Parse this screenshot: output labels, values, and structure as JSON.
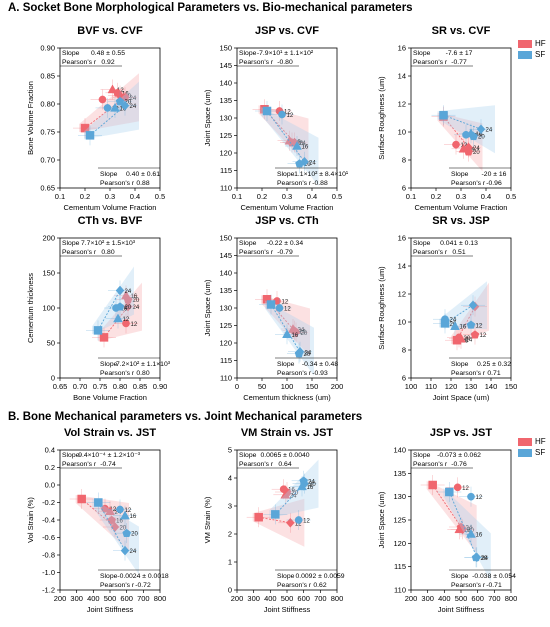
{
  "sections": [
    {
      "letter": "A.",
      "title": "Socket Bone Morphological Parameters vs. Bio-mechanical parameters"
    },
    {
      "letter": "B.",
      "title": "Bone Mechanical parameters vs. Joint Mechanical parameters"
    }
  ],
  "legend": [
    {
      "label": "HF",
      "color": "#f0666e"
    },
    {
      "label": "SF",
      "color": "#5aa6d8"
    }
  ],
  "chart_data": [
    {
      "type": "scatter",
      "title": "BVF vs. CVF",
      "xlabel": "Cementum Volume Fraction",
      "ylabel": "Bone Volume Fraction",
      "xlim": [
        0.1,
        0.5
      ],
      "ylim": [
        0.65,
        0.9
      ],
      "xticks": [
        "0.1",
        "0.2",
        "0.3",
        "0.4",
        "0.5"
      ],
      "yticks": [
        "0.65",
        "0.70",
        "0.75",
        "0.80",
        "0.85",
        "0.90"
      ],
      "series": [
        {
          "name": "HF",
          "points": [
            {
              "x": 0.2,
              "y": 0.757,
              "label": ""
            },
            {
              "x": 0.27,
              "y": 0.808,
              "label": ""
            },
            {
              "x": 0.31,
              "y": 0.826,
              "label": "12"
            },
            {
              "x": 0.33,
              "y": 0.82,
              "label": "16"
            },
            {
              "x": 0.34,
              "y": 0.815,
              "label": "20"
            },
            {
              "x": 0.36,
              "y": 0.812,
              "label": "24"
            }
          ]
        },
        {
          "name": "SF",
          "points": [
            {
              "x": 0.22,
              "y": 0.744,
              "label": ""
            },
            {
              "x": 0.29,
              "y": 0.793,
              "label": "12"
            },
            {
              "x": 0.32,
              "y": 0.793,
              "label": "16"
            },
            {
              "x": 0.34,
              "y": 0.805,
              "label": "20"
            },
            {
              "x": 0.36,
              "y": 0.797,
              "label": "24"
            }
          ]
        }
      ],
      "stats": [
        {
          "slope": "0.48 ± 0.55",
          "r": "0.92"
        },
        {
          "slope": "0.40 ± 0.61",
          "r": "0.88"
        }
      ]
    },
    {
      "type": "scatter",
      "title": "JSP vs. CVF",
      "xlabel": "Cementum Volume Fraction",
      "ylabel": "Joint Space (um)",
      "xlim": [
        0.1,
        0.5
      ],
      "ylim": [
        110,
        150
      ],
      "xticks": [
        "0.1",
        "0.2",
        "0.3",
        "0.4",
        "0.5"
      ],
      "yticks": [
        "110",
        "115",
        "120",
        "125",
        "130",
        "135",
        "140",
        "145",
        "150"
      ],
      "series": [
        {
          "name": "HF",
          "points": [
            {
              "x": 0.21,
              "y": 132.5,
              "label": ""
            },
            {
              "x": 0.27,
              "y": 132.0,
              "label": "12"
            },
            {
              "x": 0.31,
              "y": 123.5,
              "label": "16"
            },
            {
              "x": 0.32,
              "y": 123.0,
              "label": "20"
            },
            {
              "x": 0.33,
              "y": 123.0,
              "label": "24"
            }
          ]
        },
        {
          "name": "SF",
          "points": [
            {
              "x": 0.22,
              "y": 132.0,
              "label": ""
            },
            {
              "x": 0.28,
              "y": 131.0,
              "label": "12"
            },
            {
              "x": 0.34,
              "y": 122.0,
              "label": "16"
            },
            {
              "x": 0.35,
              "y": 117.0,
              "label": "20"
            },
            {
              "x": 0.37,
              "y": 117.5,
              "label": "24"
            }
          ]
        }
      ],
      "stats": [
        {
          "slope": "-7.9×10¹ ± 1.1×10²",
          "r": "-0.80"
        },
        {
          "slope": "-1.1×10² ± 8.4×10¹",
          "r": "-0.88"
        }
      ]
    },
    {
      "type": "scatter",
      "title": "SR vs. CVF",
      "xlabel": "Cementum Volume Fraction",
      "ylabel": "Surface Roughness (um)",
      "xlim": [
        0.1,
        0.5
      ],
      "ylim": [
        6,
        16
      ],
      "xticks": [
        "0.1",
        "0.2",
        "0.3",
        "0.4",
        "0.5"
      ],
      "yticks": [
        "6",
        "8",
        "10",
        "12",
        "14",
        "16"
      ],
      "series": [
        {
          "name": "HF",
          "points": [
            {
              "x": 0.23,
              "y": 11.1,
              "label": ""
            },
            {
              "x": 0.28,
              "y": 9.1,
              "label": "12"
            },
            {
              "x": 0.31,
              "y": 8.8,
              "label": "16"
            },
            {
              "x": 0.33,
              "y": 8.6,
              "label": "20"
            },
            {
              "x": 0.33,
              "y": 8.9,
              "label": "24"
            }
          ]
        },
        {
          "name": "SF",
          "points": [
            {
              "x": 0.23,
              "y": 11.2,
              "label": ""
            },
            {
              "x": 0.32,
              "y": 9.8,
              "label": "12"
            },
            {
              "x": 0.34,
              "y": 9.9,
              "label": "16"
            },
            {
              "x": 0.35,
              "y": 9.7,
              "label": "20"
            },
            {
              "x": 0.38,
              "y": 10.2,
              "label": "24"
            }
          ]
        }
      ],
      "stats": [
        {
          "slope": "-7.6 ± 17",
          "r": "-0.77"
        },
        {
          "slope": "-20 ± 16",
          "r": "-0.96"
        }
      ]
    },
    {
      "type": "scatter",
      "title": "CTh vs. BVF",
      "xlabel": "Bone Volume Fraction",
      "ylabel": "Cementum thickness",
      "xlim": [
        0.65,
        0.9
      ],
      "ylim": [
        0,
        200
      ],
      "xticks": [
        "0.65",
        "0.70",
        "0.75",
        "0.80",
        "0.85",
        "0.90"
      ],
      "yticks": [
        "0",
        "50",
        "100",
        "150",
        "200"
      ],
      "series": [
        {
          "name": "HF",
          "points": [
            {
              "x": 0.76,
              "y": 58,
              "label": ""
            },
            {
              "x": 0.815,
              "y": 78,
              "label": "12"
            },
            {
              "x": 0.815,
              "y": 118,
              "label": "16"
            },
            {
              "x": 0.82,
              "y": 112,
              "label": "20"
            },
            {
              "x": 0.82,
              "y": 102,
              "label": "24"
            }
          ]
        },
        {
          "name": "SF",
          "points": [
            {
              "x": 0.745,
              "y": 68,
              "label": ""
            },
            {
              "x": 0.79,
              "y": 100,
              "label": "16"
            },
            {
              "x": 0.795,
              "y": 85,
              "label": "12"
            },
            {
              "x": 0.8,
              "y": 102,
              "label": "20"
            },
            {
              "x": 0.8,
              "y": 125,
              "label": "24"
            }
          ]
        }
      ],
      "stats": [
        {
          "slope": "7.7×10² ± 1.5×10³",
          "r": "0.80"
        },
        {
          "slope": "7.2×10² ± 1.1×10³",
          "r": "0.80"
        }
      ]
    },
    {
      "type": "scatter",
      "title": "JSP vs. CTh",
      "xlabel": "Cementum thickness (um)",
      "ylabel": "Joint Space (um)",
      "xlim": [
        0,
        200
      ],
      "ylim": [
        110,
        150
      ],
      "xticks": [
        "0",
        "50",
        "100",
        "150",
        "200"
      ],
      "yticks": [
        "110",
        "115",
        "120",
        "125",
        "130",
        "135",
        "140",
        "145",
        "150"
      ],
      "series": [
        {
          "name": "HF",
          "points": [
            {
              "x": 60,
              "y": 132.5,
              "label": ""
            },
            {
              "x": 80,
              "y": 132.0,
              "label": "12"
            },
            {
              "x": 112,
              "y": 124.0,
              "label": "24"
            },
            {
              "x": 115,
              "y": 123.5,
              "label": "16"
            },
            {
              "x": 118,
              "y": 123.0,
              "label": "20"
            }
          ]
        },
        {
          "name": "SF",
          "points": [
            {
              "x": 68,
              "y": 131.0,
              "label": ""
            },
            {
              "x": 85,
              "y": 130.0,
              "label": "12"
            },
            {
              "x": 100,
              "y": 122.5,
              "label": "16"
            },
            {
              "x": 124,
              "y": 117.0,
              "label": "20"
            },
            {
              "x": 126,
              "y": 117.5,
              "label": "24"
            }
          ]
        }
      ],
      "stats": [
        {
          "slope": "-0.22 ± 0.34",
          "r": "-0.79"
        },
        {
          "slope": "-0.34 ± 0.48",
          "r": "-0.93"
        }
      ]
    },
    {
      "type": "scatter",
      "title": "SR vs. JSP",
      "xlabel": "Joint Space (um)",
      "ylabel": "Surface Roughness (um)",
      "xlim": [
        100,
        150
      ],
      "ylim": [
        6,
        16
      ],
      "xticks": [
        "100",
        "110",
        "120",
        "130",
        "140",
        "150"
      ],
      "yticks": [
        "6",
        "8",
        "10",
        "12",
        "14",
        "16"
      ],
      "series": [
        {
          "name": "HF",
          "points": [
            {
              "x": 123,
              "y": 8.7,
              "label": "16"
            },
            {
              "x": 124,
              "y": 8.9,
              "label": "20"
            },
            {
              "x": 125,
              "y": 8.8,
              "label": "24"
            },
            {
              "x": 132,
              "y": 9.1,
              "label": "12"
            },
            {
              "x": 132,
              "y": 11.1,
              "label": ""
            }
          ]
        },
        {
          "name": "SF",
          "points": [
            {
              "x": 117,
              "y": 9.9,
              "label": "20"
            },
            {
              "x": 117,
              "y": 10.2,
              "label": "24"
            },
            {
              "x": 122,
              "y": 9.7,
              "label": "16"
            },
            {
              "x": 130,
              "y": 9.8,
              "label": "12"
            },
            {
              "x": 131,
              "y": 11.2,
              "label": ""
            }
          ]
        }
      ],
      "stats": [
        {
          "slope": "0.041 ± 0.13",
          "r": "0.51"
        },
        {
          "slope": "0.25 ± 0.32",
          "r": "0.71"
        }
      ]
    },
    {
      "type": "scatter",
      "title": "Vol Strain vs. JST",
      "xlabel": "Joint Stiffness",
      "ylabel": "Vol Strain (%)",
      "xlim": [
        200,
        800
      ],
      "ylim": [
        -1.2,
        0.4
      ],
      "xticks": [
        "200",
        "300",
        "400",
        "500",
        "600",
        "700",
        "800"
      ],
      "yticks": [
        "-1.2",
        "-1.0",
        "-0.8",
        "-0.6",
        "-0.4",
        "-0.2",
        "0.0",
        "0.2",
        "0.4"
      ],
      "series": [
        {
          "name": "HF",
          "points": [
            {
              "x": 330,
              "y": -0.16,
              "label": ""
            },
            {
              "x": 470,
              "y": -0.27,
              "label": "12"
            },
            {
              "x": 500,
              "y": -0.3,
              "label": "24"
            },
            {
              "x": 510,
              "y": -0.4,
              "label": "16"
            },
            {
              "x": 530,
              "y": -0.48,
              "label": "20"
            }
          ]
        },
        {
          "name": "SF",
          "points": [
            {
              "x": 430,
              "y": -0.2,
              "label": ""
            },
            {
              "x": 560,
              "y": -0.28,
              "label": "12"
            },
            {
              "x": 590,
              "y": -0.35,
              "label": "16"
            },
            {
              "x": 600,
              "y": -0.55,
              "label": "20"
            },
            {
              "x": 590,
              "y": -0.75,
              "label": "24"
            }
          ]
        }
      ],
      "stats": [
        {
          "slope": "-9.4×10⁻⁴ ± 1.2×10⁻³",
          "r": "-0.74"
        },
        {
          "slope": "-0.0024 ± 0.0018",
          "r": "-0.72"
        }
      ]
    },
    {
      "type": "scatter",
      "title": "VM Strain vs. JST",
      "xlabel": "Joint Stiffness",
      "ylabel": "VM Strain (%)",
      "xlim": [
        200,
        800
      ],
      "ylim": [
        0,
        5
      ],
      "xticks": [
        "200",
        "300",
        "400",
        "500",
        "600",
        "700",
        "800"
      ],
      "yticks": [
        "0",
        "1",
        "2",
        "3",
        "4",
        "5"
      ],
      "series": [
        {
          "name": "HF",
          "points": [
            {
              "x": 330,
              "y": 2.6,
              "label": ""
            },
            {
              "x": 480,
              "y": 3.6,
              "label": "16"
            },
            {
              "x": 490,
              "y": 3.4,
              "label": "24"
            },
            {
              "x": 500,
              "y": 3.5,
              "label": "20"
            },
            {
              "x": 520,
              "y": 2.4,
              "label": "12"
            }
          ]
        },
        {
          "name": "SF",
          "points": [
            {
              "x": 430,
              "y": 2.7,
              "label": ""
            },
            {
              "x": 570,
              "y": 2.5,
              "label": "12"
            },
            {
              "x": 590,
              "y": 3.7,
              "label": "16"
            },
            {
              "x": 600,
              "y": 3.9,
              "label": "24"
            },
            {
              "x": 605,
              "y": 3.8,
              "label": "20"
            }
          ]
        }
      ],
      "stats": [
        {
          "slope": "0.0065 ± 0.0040",
          "r": "0.64"
        },
        {
          "slope": "0.0092 ± 0.0059",
          "r": "0.62"
        }
      ]
    },
    {
      "type": "scatter",
      "title": "JSP vs. JST",
      "xlabel": "Joint Stiffness",
      "ylabel": "Joint Space (um)",
      "xlim": [
        200,
        800
      ],
      "ylim": [
        110,
        140
      ],
      "xticks": [
        "200",
        "300",
        "400",
        "500",
        "600",
        "700",
        "800"
      ],
      "yticks": [
        "110",
        "115",
        "120",
        "125",
        "130",
        "135",
        "140"
      ],
      "series": [
        {
          "name": "HF",
          "points": [
            {
              "x": 330,
              "y": 132.5,
              "label": ""
            },
            {
              "x": 480,
              "y": 132.0,
              "label": "12"
            },
            {
              "x": 490,
              "y": 123.0,
              "label": "16"
            },
            {
              "x": 500,
              "y": 123.5,
              "label": "24"
            },
            {
              "x": 510,
              "y": 123.0,
              "label": "20"
            }
          ]
        },
        {
          "name": "SF",
          "points": [
            {
              "x": 430,
              "y": 131.0,
              "label": ""
            },
            {
              "x": 560,
              "y": 130.0,
              "label": "12"
            },
            {
              "x": 560,
              "y": 122.0,
              "label": "16"
            },
            {
              "x": 590,
              "y": 117.0,
              "label": "20"
            },
            {
              "x": 595,
              "y": 117.0,
              "label": "24"
            }
          ]
        }
      ],
      "stats": [
        {
          "slope": "-0.073 ± 0.062",
          "r": "-0.76"
        },
        {
          "slope": "-0.038 ± 0.054",
          "r": "-0.71"
        }
      ]
    }
  ],
  "stat_labels": {
    "slope": "Slope",
    "r": "Pearson's r"
  }
}
